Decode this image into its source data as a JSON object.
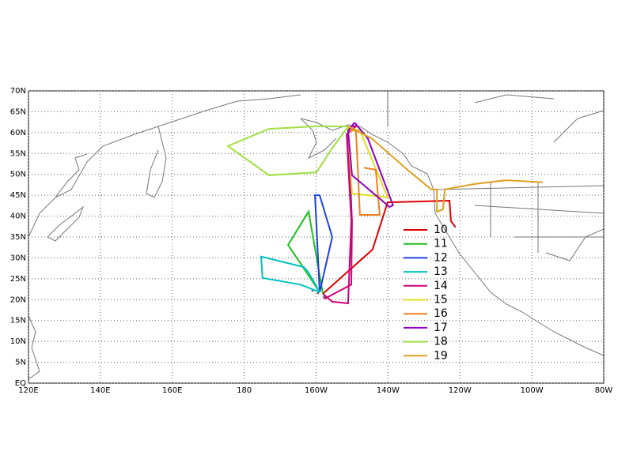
{
  "map": {
    "xlim": [
      120,
      280
    ],
    "ylim": [
      0,
      70
    ],
    "xticks": [
      {
        "value": 120,
        "label": "120E"
      },
      {
        "value": 140,
        "label": "140E"
      },
      {
        "value": 160,
        "label": "160E"
      },
      {
        "value": 180,
        "label": "180"
      },
      {
        "value": 200,
        "label": "160W"
      },
      {
        "value": 220,
        "label": "140W"
      },
      {
        "value": 240,
        "label": "120W"
      },
      {
        "value": 260,
        "label": "100W"
      },
      {
        "value": 280,
        "label": "80W"
      }
    ],
    "yticks": [
      {
        "value": 0,
        "label": "EQ"
      },
      {
        "value": 5,
        "label": "5N"
      },
      {
        "value": 10,
        "label": "10N"
      },
      {
        "value": 15,
        "label": "15N"
      },
      {
        "value": 20,
        "label": "20N"
      },
      {
        "value": 25,
        "label": "25N"
      },
      {
        "value": 30,
        "label": "30N"
      },
      {
        "value": 35,
        "label": "35N"
      },
      {
        "value": 40,
        "label": "40N"
      },
      {
        "value": 45,
        "label": "45N"
      },
      {
        "value": 50,
        "label": "50N"
      },
      {
        "value": 55,
        "label": "55N"
      },
      {
        "value": 60,
        "label": "60N"
      },
      {
        "value": 65,
        "label": "65N"
      },
      {
        "value": 70,
        "label": "70N"
      }
    ],
    "grid": true,
    "tracks": [
      {
        "name": "10",
        "color": "#e00000",
        "lon": [
          201.9,
          215.7,
          219.9,
          237.1,
          237.5,
          238.8
        ],
        "lat": [
          21.4,
          32.0,
          43.3,
          43.7,
          38.8,
          37.3
        ]
      },
      {
        "name": "11",
        "color": "#20c020",
        "lon": [
          201.9,
          197.9,
          192.2,
          201.0
        ],
        "lat": [
          21.4,
          41.1,
          33.1,
          21.8
        ]
      },
      {
        "name": "12",
        "color": "#2040e0",
        "lon": [
          201.0,
          204.5,
          201.0,
          199.7,
          201.0
        ],
        "lat": [
          21.8,
          35.0,
          45.0,
          45.0,
          21.8
        ]
      },
      {
        "name": "13",
        "color": "#00c0c0",
        "lon": [
          201.0,
          197.9,
          196.6,
          184.7,
          185.1,
          195.7,
          201.0
        ],
        "lat": [
          21.8,
          26.5,
          27.8,
          30.3,
          25.2,
          23.6,
          21.8
        ]
      },
      {
        "name": "14",
        "color": "#d0007a",
        "lon": [
          201.9,
          204.5,
          208.9,
          209.8,
          208.5,
          211.1,
          210.0,
          208.9,
          210.0,
          209.8,
          202.3
        ],
        "lat": [
          21.4,
          19.5,
          19.1,
          38.8,
          59.6,
          61.5,
          61.5,
          59.6,
          38.8,
          23.6,
          20.2
        ]
      },
      {
        "name": "15",
        "color": "#e0e020",
        "lon": [
          208.9,
          212.2,
          219.9,
          210.0,
          208.9
        ],
        "lat": [
          61.1,
          60.5,
          44.5,
          45.4,
          61.1
        ]
      },
      {
        "name": "16",
        "color": "#f08020",
        "lon": [
          208.9,
          211.1,
          212.2,
          217.7,
          216.6,
          213.3
        ],
        "lat": [
          60.5,
          60.5,
          40.3,
          40.3,
          51.1,
          51.6
        ]
      },
      {
        "name": "17",
        "color": "#9000c0",
        "lon": [
          210.7,
          214.4,
          221.4,
          220.4,
          210.0,
          208.9,
          210.7
        ],
        "lat": [
          62.4,
          58.6,
          42.6,
          42.2,
          49.8,
          60.5,
          62.4
        ]
      },
      {
        "name": "18",
        "color": "#a0e040",
        "lon": [
          208.9,
          200.1,
          186.9,
          175.5,
          186.9,
          200.1,
          204.1,
          208.9
        ],
        "lat": [
          61.5,
          61.5,
          60.9,
          56.8,
          49.8,
          50.5,
          55.8,
          61.5
        ]
      },
      {
        "name": "19",
        "color": "#e0a020",
        "lon": [
          208.9,
          215.5,
          225.4,
          232.0,
          233.6,
          233.6,
          235.3,
          235.8,
          244.1,
          252.9,
          263.0
        ],
        "lat": [
          61.5,
          58.6,
          51.1,
          46.4,
          46.4,
          41.1,
          41.6,
          46.4,
          47.7,
          48.6,
          48.1
        ]
      }
    ]
  }
}
